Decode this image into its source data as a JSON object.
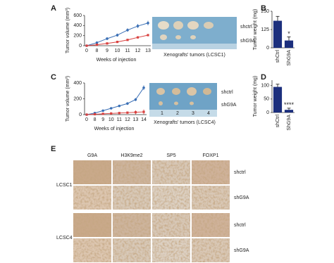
{
  "panel_labels": [
    "A",
    "B",
    "C",
    "D",
    "E"
  ],
  "chart_data": [
    {
      "type": "line",
      "x_label": "Weeks of injection",
      "y_label": "Tumor volume (mm³)",
      "categories": [
        "0",
        "8",
        "9",
        "10",
        "11",
        "12",
        "13"
      ],
      "series": [
        {
          "color": "#3a6fb5",
          "marker": "circle",
          "values": [
            0,
            60,
            140,
            210,
            310,
            390,
            450
          ],
          "errors": [
            0,
            15,
            25,
            30,
            35,
            40,
            45
          ]
        },
        {
          "color": "#d9413f",
          "marker": "square",
          "values": [
            0,
            20,
            45,
            75,
            115,
            165,
            210
          ],
          "errors": [
            0,
            8,
            10,
            12,
            15,
            18,
            20
          ]
        }
      ],
      "ylim": [
        0,
        600
      ],
      "yticks": [
        0,
        200,
        400,
        600
      ]
    },
    {
      "type": "bar",
      "y_label": "Tumor weight (mg)",
      "categories": [
        "shCtrl",
        "ShG9A"
      ],
      "values": [
        185,
        50
      ],
      "errors": [
        30,
        25
      ],
      "color": "#1c2f7d",
      "annotation": "*",
      "ylim": [
        0,
        250
      ],
      "yticks": [
        0,
        125,
        250
      ]
    },
    {
      "type": "line",
      "x_label": "Weeks of injection",
      "y_label": "Tumor volume (mm³)",
      "categories": [
        "0",
        "8",
        "9",
        "10",
        "11",
        "12",
        "13",
        "14"
      ],
      "series": [
        {
          "color": "#3a6fb5",
          "marker": "circle",
          "values": [
            0,
            20,
            50,
            80,
            110,
            140,
            190,
            340
          ],
          "errors": [
            0,
            8,
            10,
            12,
            15,
            18,
            20,
            30
          ]
        },
        {
          "color": "#d9413f",
          "marker": "square",
          "values": [
            0,
            5,
            10,
            15,
            20,
            25,
            30,
            35
          ],
          "errors": [
            0,
            3,
            4,
            5,
            6,
            8,
            25,
            30
          ]
        }
      ],
      "ylim": [
        0,
        400
      ],
      "yticks": [
        0,
        200,
        400
      ]
    },
    {
      "type": "bar",
      "y_label": "Tumor weight (mg)",
      "categories": [
        "shCtrl",
        "ShG9A"
      ],
      "values": [
        95,
        10
      ],
      "errors": [
        10,
        6
      ],
      "color": "#1c2f7d",
      "annotation": "****",
      "ylim": [
        0,
        120
      ],
      "yticks": [
        0,
        50,
        100
      ]
    }
  ],
  "xenografts": [
    {
      "caption": "Xenografts' tumors (LCSC1)",
      "rows": [
        "shctrl",
        "shG9A"
      ]
    },
    {
      "caption": "Xenografts' tumors (LCSC4)",
      "rows": [
        "shctrl",
        "shG9A"
      ],
      "ruler": [
        "1",
        "2",
        "3",
        "4"
      ]
    }
  ],
  "ihc": {
    "columns": [
      "G9A",
      "H3K9me2",
      "SP5",
      "FOXP1"
    ],
    "groups": [
      {
        "label": "LCSC1",
        "rows": [
          "shctrl",
          "shG9A"
        ]
      },
      {
        "label": "LCSC4",
        "rows": [
          "shctrl",
          "shG9A"
        ]
      }
    ]
  }
}
